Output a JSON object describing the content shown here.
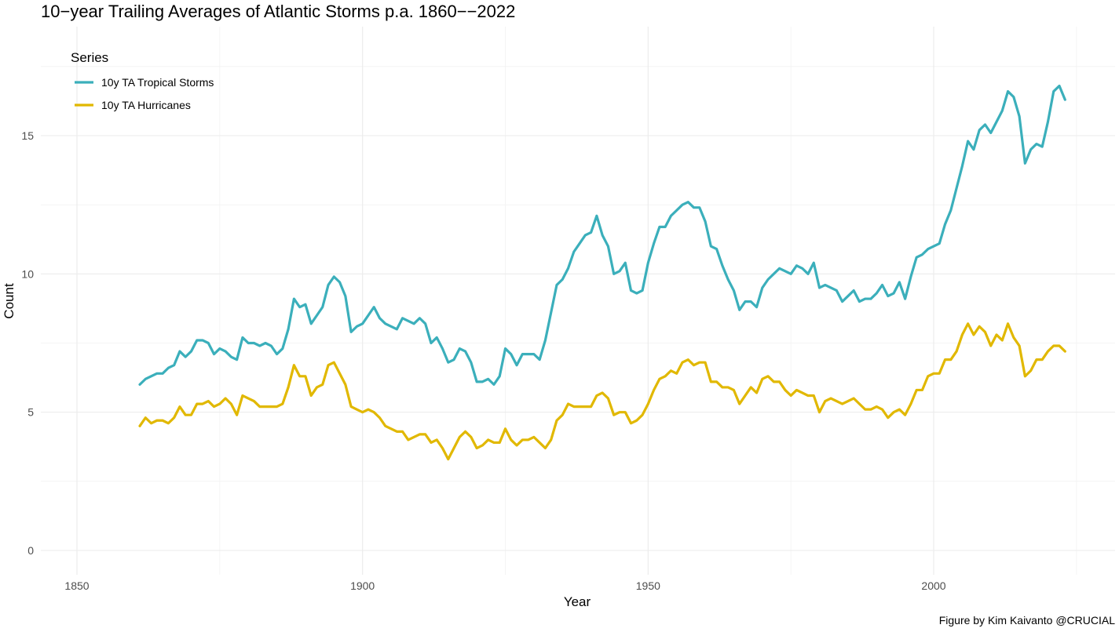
{
  "chart_data": {
    "type": "line",
    "title": "10−year Trailing Averages of Atlantic Storms p.a. 1860−−2022",
    "xlabel": "Year",
    "ylabel": "Count",
    "caption": "Figure by Kim Kaivanto @CRUCIAL",
    "xlim": [
      1843.5,
      2029
    ],
    "ylim": [
      -0.9,
      19
    ],
    "x_major_ticks": [
      1850,
      1900,
      1950,
      2000
    ],
    "x_minor_ticks": [
      1875,
      1925,
      1975,
      2025
    ],
    "y_major_ticks": [
      0,
      5,
      10,
      15
    ],
    "y_minor_ticks": [
      2.5,
      7.5,
      12.5,
      17.5
    ],
    "x_tick_labels": [
      "1850",
      "1900",
      "1950",
      "2000"
    ],
    "y_tick_labels": [
      "0",
      "5",
      "10",
      "15"
    ],
    "grid": true,
    "legend": {
      "title": "Series",
      "position": "top-left"
    },
    "start_year": 1861,
    "series": [
      {
        "name": "10y TA Tropical Storms",
        "color": "#3BAFBB",
        "values": [
          6.0,
          6.2,
          6.3,
          6.4,
          6.4,
          6.6,
          6.7,
          7.2,
          7.0,
          7.2,
          7.6,
          7.6,
          7.5,
          7.1,
          7.3,
          7.2,
          7.0,
          6.9,
          7.7,
          7.5,
          7.5,
          7.4,
          7.5,
          7.4,
          7.1,
          7.3,
          8.0,
          9.1,
          8.8,
          8.9,
          8.2,
          8.5,
          8.8,
          9.6,
          9.9,
          9.7,
          9.2,
          7.9,
          8.1,
          8.2,
          8.5,
          8.8,
          8.4,
          8.2,
          8.1,
          8.0,
          8.4,
          8.3,
          8.2,
          8.4,
          8.2,
          7.5,
          7.7,
          7.3,
          6.8,
          6.9,
          7.3,
          7.2,
          6.8,
          6.1,
          6.1,
          6.2,
          6.0,
          6.3,
          7.3,
          7.1,
          6.7,
          7.1,
          7.1,
          7.1,
          6.9,
          7.6,
          8.6,
          9.6,
          9.8,
          10.2,
          10.8,
          11.1,
          11.4,
          11.5,
          12.1,
          11.4,
          11.0,
          10.0,
          10.1,
          10.4,
          9.4,
          9.3,
          9.4,
          10.4,
          11.1,
          11.7,
          11.7,
          12.1,
          12.3,
          12.5,
          12.6,
          12.4,
          12.4,
          11.9,
          11.0,
          10.9,
          10.3,
          9.8,
          9.4,
          8.7,
          9.0,
          9.0,
          8.8,
          9.5,
          9.8,
          10.0,
          10.2,
          10.1,
          10.0,
          10.3,
          10.2,
          10.0,
          10.4,
          9.5,
          9.6,
          9.5,
          9.4,
          9.0,
          9.2,
          9.4,
          9.0,
          9.1,
          9.1,
          9.3,
          9.6,
          9.2,
          9.3,
          9.7,
          9.1,
          9.9,
          10.6,
          10.7,
          10.9,
          11.0,
          11.1,
          11.8,
          12.3,
          13.1,
          13.9,
          14.8,
          14.5,
          15.2,
          15.4,
          15.1,
          15.5,
          15.9,
          16.6,
          16.4,
          15.7,
          14.0,
          14.5,
          14.7,
          14.6,
          15.5,
          16.6,
          16.8,
          16.3
        ]
      },
      {
        "name": "10y TA Hurricanes",
        "color": "#E1B800",
        "values": [
          4.5,
          4.8,
          4.6,
          4.7,
          4.7,
          4.6,
          4.8,
          5.2,
          4.9,
          4.9,
          5.3,
          5.3,
          5.4,
          5.2,
          5.3,
          5.5,
          5.3,
          4.9,
          5.6,
          5.5,
          5.4,
          5.2,
          5.2,
          5.2,
          5.2,
          5.3,
          5.9,
          6.7,
          6.3,
          6.3,
          5.6,
          5.9,
          6.0,
          6.7,
          6.8,
          6.4,
          6.0,
          5.2,
          5.1,
          5.0,
          5.1,
          5.0,
          4.8,
          4.5,
          4.4,
          4.3,
          4.3,
          4.0,
          4.1,
          4.2,
          4.2,
          3.9,
          4.0,
          3.7,
          3.3,
          3.7,
          4.1,
          4.3,
          4.1,
          3.7,
          3.8,
          4.0,
          3.9,
          3.9,
          4.4,
          4.0,
          3.8,
          4.0,
          4.0,
          4.1,
          3.9,
          3.7,
          4.0,
          4.7,
          4.9,
          5.3,
          5.2,
          5.2,
          5.2,
          5.2,
          5.6,
          5.7,
          5.5,
          4.9,
          5.0,
          5.0,
          4.6,
          4.7,
          4.9,
          5.3,
          5.8,
          6.2,
          6.3,
          6.5,
          6.4,
          6.8,
          6.9,
          6.7,
          6.8,
          6.8,
          6.1,
          6.1,
          5.9,
          5.9,
          5.8,
          5.3,
          5.6,
          5.9,
          5.7,
          6.2,
          6.3,
          6.1,
          6.1,
          5.8,
          5.6,
          5.8,
          5.7,
          5.6,
          5.6,
          5.0,
          5.4,
          5.5,
          5.4,
          5.3,
          5.4,
          5.5,
          5.3,
          5.1,
          5.1,
          5.2,
          5.1,
          4.8,
          5.0,
          5.1,
          4.9,
          5.3,
          5.8,
          5.8,
          6.3,
          6.4,
          6.4,
          6.9,
          6.9,
          7.2,
          7.8,
          8.2,
          7.8,
          8.1,
          7.9,
          7.4,
          7.8,
          7.6,
          8.2,
          7.7,
          7.4,
          6.3,
          6.5,
          6.9,
          6.9,
          7.2,
          7.4,
          7.4,
          7.2
        ]
      }
    ]
  }
}
